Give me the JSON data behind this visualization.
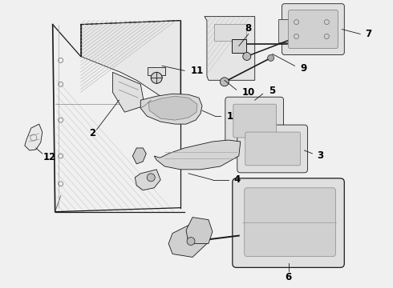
{
  "bg_color": "#f0f0f0",
  "line_color": "#1a1a1a",
  "label_color": "#000000",
  "label_fontsize": 8.5,
  "fig_width": 4.9,
  "fig_height": 3.6,
  "dpi": 100
}
